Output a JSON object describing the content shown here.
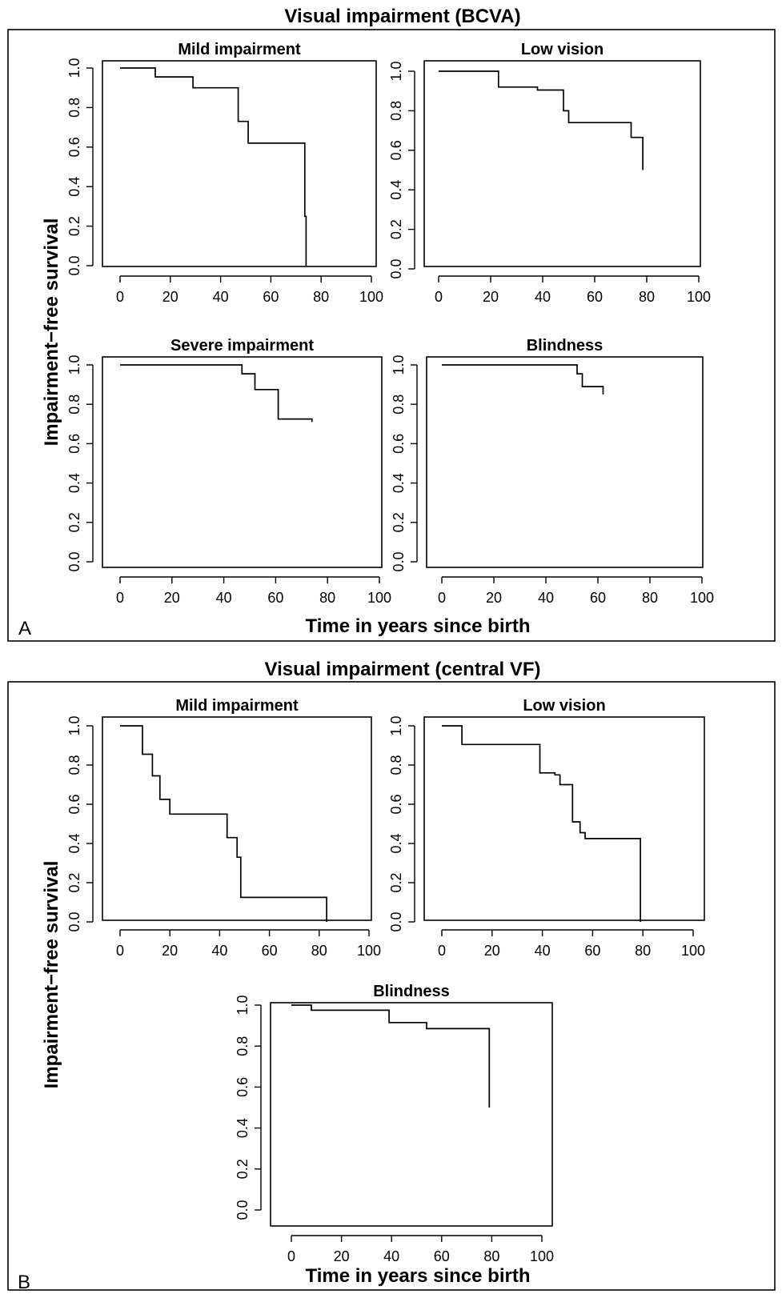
{
  "panels": [
    {
      "title": "Visual impairment (BCVA)",
      "letter": "A",
      "ylabel": "Impairment−free survival",
      "xlabel": "Time in years since birth"
    },
    {
      "title": "Visual impairment (central VF)",
      "letter": "B",
      "ylabel": "Impairment−free survival",
      "xlabel": "Time in years since birth"
    }
  ],
  "chart_data": [
    {
      "type": "line",
      "panel": "A",
      "title": "Mild impairment",
      "xlim": [
        0,
        100
      ],
      "ylim": [
        0,
        1
      ],
      "xticks": [
        "0",
        "20",
        "40",
        "60",
        "80",
        "100"
      ],
      "yticks": [
        "0.0",
        "0.2",
        "0.4",
        "0.6",
        "0.8",
        "1.0"
      ],
      "series": [
        {
          "points": [
            [
              0,
              1.0
            ],
            [
              14,
              1.0
            ],
            [
              14,
              0.955
            ],
            [
              29,
              0.955
            ],
            [
              29,
              0.9
            ],
            [
              47,
              0.9
            ],
            [
              47,
              0.73
            ],
            [
              51,
              0.73
            ],
            [
              51,
              0.62
            ],
            [
              73.5,
              0.62
            ],
            [
              73.5,
              0.25
            ],
            [
              74,
              0.25
            ],
            [
              74,
              0.0
            ]
          ]
        }
      ]
    },
    {
      "type": "line",
      "panel": "A",
      "title": "Low vision",
      "xlim": [
        0,
        100
      ],
      "ylim": [
        0,
        1
      ],
      "xticks": [
        "0",
        "20",
        "40",
        "60",
        "80",
        "100"
      ],
      "yticks": [
        "0.0",
        "0.2",
        "0.4",
        "0.6",
        "0.8",
        "1.0"
      ],
      "series": [
        {
          "points": [
            [
              0,
              1.0
            ],
            [
              23,
              1.0
            ],
            [
              23,
              0.92
            ],
            [
              38,
              0.92
            ],
            [
              38,
              0.905
            ],
            [
              48,
              0.905
            ],
            [
              48,
              0.8
            ],
            [
              50,
              0.8
            ],
            [
              50,
              0.74
            ],
            [
              74,
              0.74
            ],
            [
              74,
              0.665
            ],
            [
              78.5,
              0.665
            ],
            [
              78.5,
              0.5
            ]
          ]
        }
      ]
    },
    {
      "type": "line",
      "panel": "A",
      "title": "Severe impairment",
      "xlim": [
        0,
        100
      ],
      "ylim": [
        0,
        1
      ],
      "xticks": [
        "0",
        "20",
        "40",
        "60",
        "80",
        "100"
      ],
      "yticks": [
        "0.0",
        "0.2",
        "0.4",
        "0.6",
        "0.8",
        "1.0"
      ],
      "series": [
        {
          "points": [
            [
              0,
              1.0
            ],
            [
              47,
              1.0
            ],
            [
              47,
              0.955
            ],
            [
              52,
              0.955
            ],
            [
              52,
              0.875
            ],
            [
              61,
              0.875
            ],
            [
              61,
              0.725
            ],
            [
              74,
              0.725
            ],
            [
              74,
              0.71
            ]
          ]
        }
      ]
    },
    {
      "type": "line",
      "panel": "A",
      "title": "Blindness",
      "xlim": [
        0,
        100
      ],
      "ylim": [
        0,
        1
      ],
      "xticks": [
        "0",
        "20",
        "40",
        "60",
        "80",
        "100"
      ],
      "yticks": [
        "0.0",
        "0.2",
        "0.4",
        "0.6",
        "0.8",
        "1.0"
      ],
      "series": [
        {
          "points": [
            [
              0,
              1.0
            ],
            [
              52,
              1.0
            ],
            [
              52,
              0.955
            ],
            [
              54,
              0.955
            ],
            [
              54,
              0.89
            ],
            [
              62,
              0.89
            ],
            [
              62,
              0.85
            ]
          ]
        }
      ]
    },
    {
      "type": "line",
      "panel": "B",
      "title": "Mild impairment",
      "xlim": [
        0,
        100
      ],
      "ylim": [
        0,
        1
      ],
      "xticks": [
        "0",
        "20",
        "40",
        "60",
        "80",
        "100"
      ],
      "yticks": [
        "0.0",
        "0.2",
        "0.4",
        "0.6",
        "0.8",
        "1.0"
      ],
      "series": [
        {
          "points": [
            [
              0,
              1.0
            ],
            [
              9,
              1.0
            ],
            [
              9,
              0.855
            ],
            [
              13,
              0.855
            ],
            [
              13,
              0.745
            ],
            [
              16,
              0.745
            ],
            [
              16,
              0.625
            ],
            [
              20,
              0.625
            ],
            [
              20,
              0.55
            ],
            [
              43,
              0.55
            ],
            [
              43,
              0.43
            ],
            [
              47,
              0.43
            ],
            [
              47,
              0.33
            ],
            [
              48.5,
              0.33
            ],
            [
              48.5,
              0.125
            ],
            [
              83,
              0.125
            ],
            [
              83,
              0.0
            ]
          ]
        }
      ]
    },
    {
      "type": "line",
      "panel": "B",
      "title": "Low vision",
      "xlim": [
        0,
        100
      ],
      "ylim": [
        0,
        1
      ],
      "xticks": [
        "0",
        "20",
        "40",
        "60",
        "80",
        "100"
      ],
      "yticks": [
        "0.0",
        "0.2",
        "0.4",
        "0.6",
        "0.8",
        "1.0"
      ],
      "series": [
        {
          "points": [
            [
              0,
              1.0
            ],
            [
              8,
              1.0
            ],
            [
              8,
              0.905
            ],
            [
              39,
              0.905
            ],
            [
              39,
              0.76
            ],
            [
              45,
              0.76
            ],
            [
              45,
              0.75
            ],
            [
              47,
              0.75
            ],
            [
              47,
              0.7
            ],
            [
              52,
              0.7
            ],
            [
              52,
              0.51
            ],
            [
              55,
              0.51
            ],
            [
              55,
              0.455
            ],
            [
              57,
              0.455
            ],
            [
              57,
              0.425
            ],
            [
              79,
              0.425
            ],
            [
              79,
              0.0
            ]
          ]
        }
      ]
    },
    {
      "type": "line",
      "panel": "B",
      "title": "Blindness",
      "xlim": [
        0,
        100
      ],
      "ylim": [
        0,
        1
      ],
      "xticks": [
        "0",
        "20",
        "40",
        "60",
        "80",
        "100"
      ],
      "yticks": [
        "0.0",
        "0.2",
        "0.4",
        "0.6",
        "0.8",
        "1.0"
      ],
      "series": [
        {
          "points": [
            [
              0,
              1.0
            ],
            [
              8,
              1.0
            ],
            [
              8,
              0.975
            ],
            [
              39,
              0.975
            ],
            [
              39,
              0.915
            ],
            [
              54,
              0.915
            ],
            [
              54,
              0.885
            ],
            [
              79,
              0.885
            ],
            [
              79,
              0.5
            ]
          ]
        }
      ]
    }
  ]
}
